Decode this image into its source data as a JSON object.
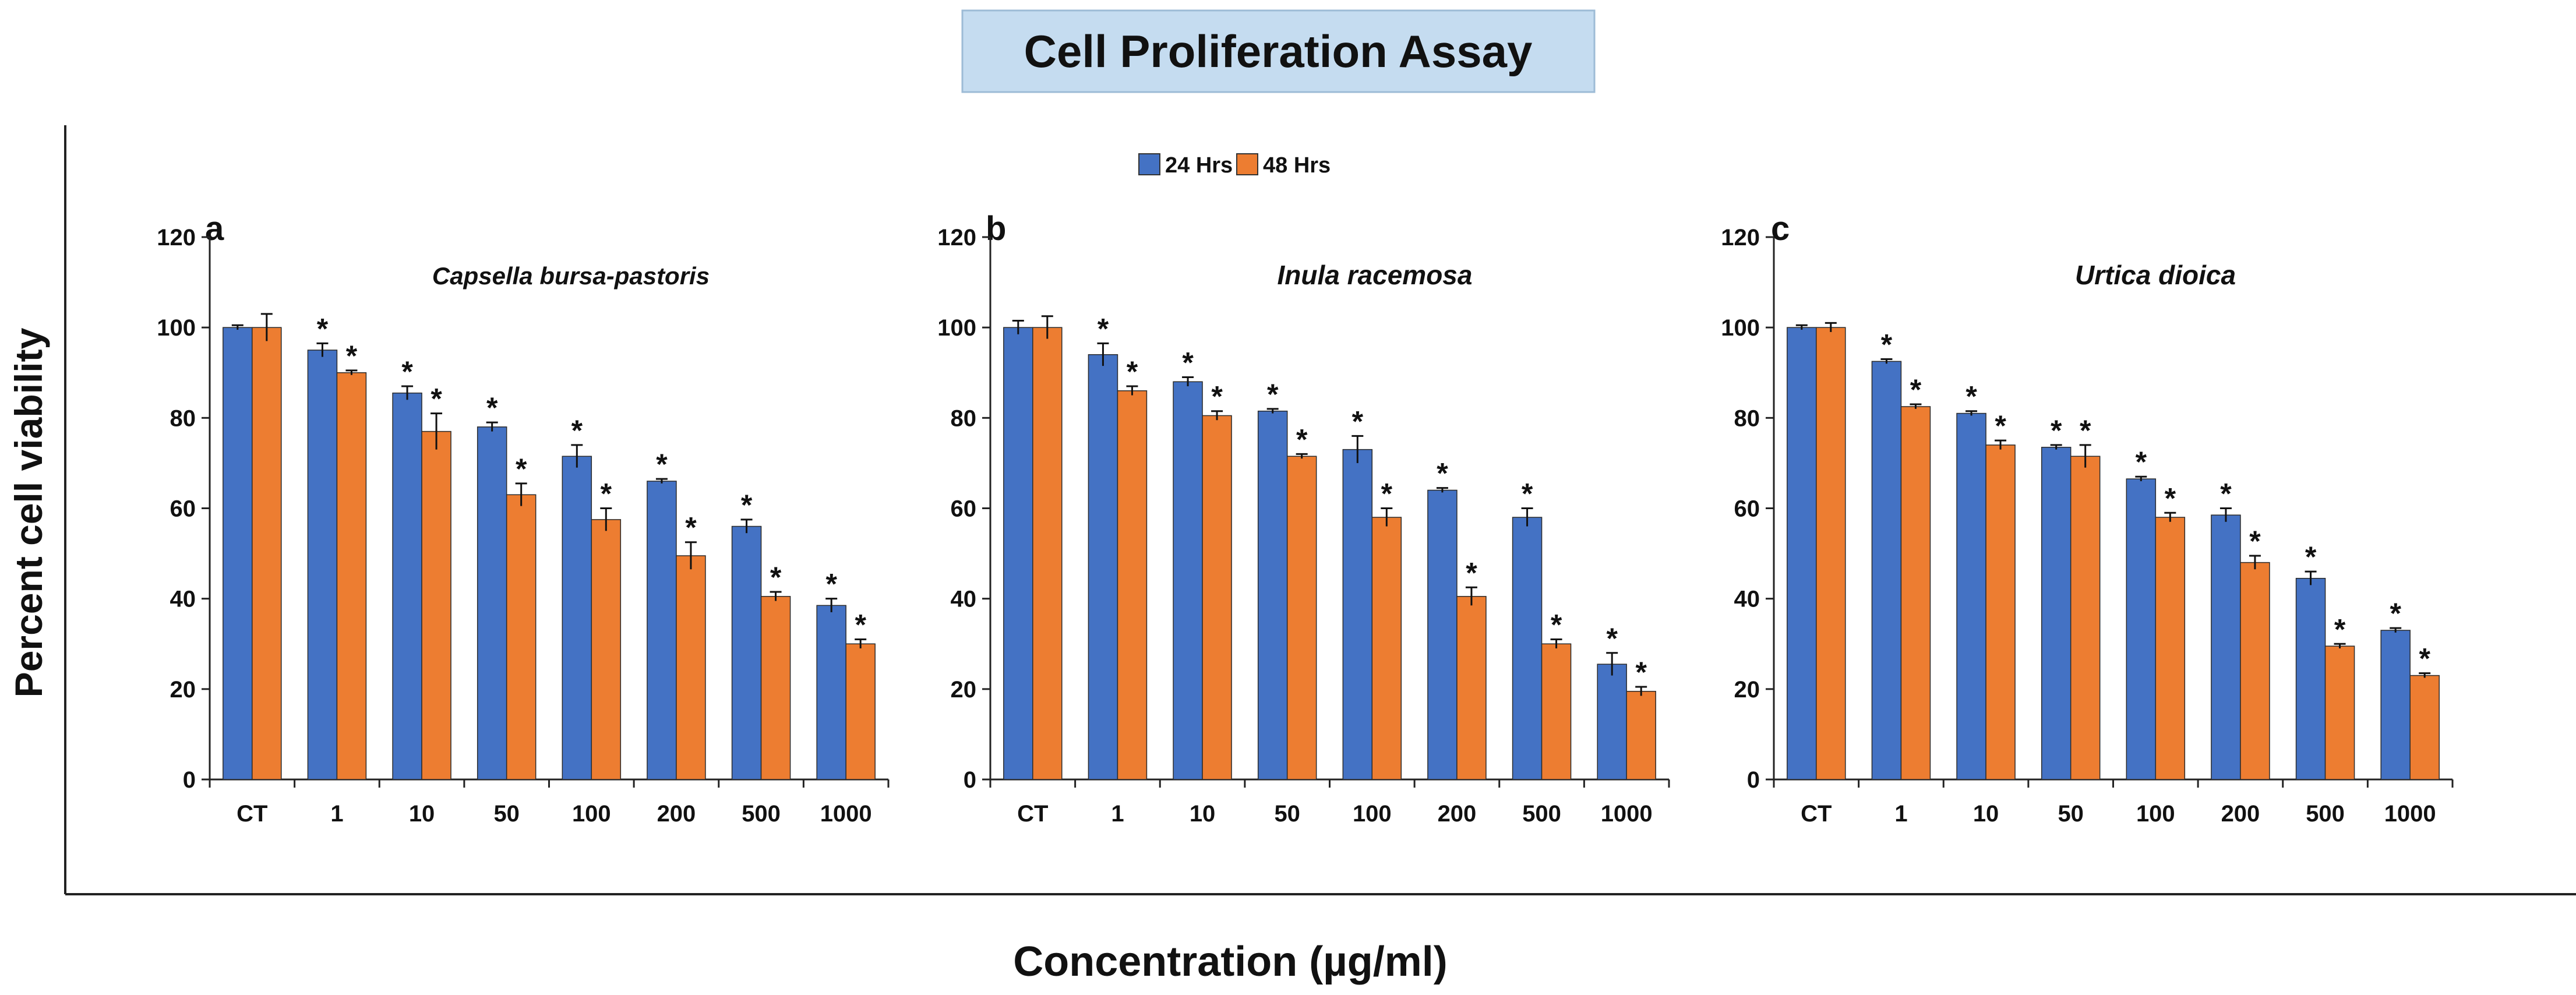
{
  "header": {
    "title": "Cell Proliferation Assay"
  },
  "axes": {
    "ylabel": "Percent cell viability",
    "xlabel": "Concentration (µg/ml)"
  },
  "legend": [
    {
      "name": "24 Hrs",
      "color": "#4472C4"
    },
    {
      "name": "48 Hrs",
      "color": "#ED7D31"
    }
  ],
  "colors": {
    "series24": "#4472C4",
    "series48": "#ED7D31",
    "title_bg": "#C5DCF0"
  },
  "significance_marker": "*",
  "chart_data": [
    {
      "type": "bar",
      "panel": "a",
      "title": "Capsella bursa-pastoris",
      "categories": [
        "CT",
        "1",
        "10",
        "50",
        "100",
        "200",
        "500",
        "1000"
      ],
      "yticks": [
        "0",
        "20",
        "40",
        "60",
        "80",
        "100",
        "120"
      ],
      "ylim": [
        0,
        120
      ],
      "series": [
        {
          "name": "24 Hrs",
          "values": [
            100,
            95,
            85.5,
            78,
            71.5,
            66,
            56,
            38.5
          ],
          "errors": [
            0.5,
            1.5,
            1.5,
            1,
            2.5,
            0.5,
            1.5,
            1.5
          ],
          "significant": [
            false,
            true,
            true,
            true,
            true,
            true,
            true,
            true
          ]
        },
        {
          "name": "48 Hrs",
          "values": [
            100,
            90,
            77,
            63,
            57.5,
            49.5,
            40.5,
            30
          ],
          "errors": [
            3,
            0.5,
            4,
            2.5,
            2.5,
            3,
            1,
            1
          ],
          "significant": [
            false,
            true,
            true,
            true,
            true,
            true,
            true,
            true
          ]
        }
      ]
    },
    {
      "type": "bar",
      "panel": "b",
      "title": "Inula racemosa",
      "categories": [
        "CT",
        "1",
        "10",
        "50",
        "100",
        "200",
        "500",
        "1000"
      ],
      "yticks": [
        "0",
        "20",
        "40",
        "60",
        "80",
        "100",
        "120"
      ],
      "ylim": [
        0,
        120
      ],
      "series": [
        {
          "name": "24 Hrs",
          "values": [
            100,
            94,
            88,
            81.5,
            73,
            64,
            58,
            25.5
          ],
          "errors": [
            1.5,
            2.5,
            1,
            0.5,
            3,
            0.5,
            2,
            2.5
          ],
          "significant": [
            false,
            true,
            true,
            true,
            true,
            true,
            true,
            true
          ]
        },
        {
          "name": "48 Hrs",
          "values": [
            100,
            86,
            80.5,
            71.5,
            58,
            40.5,
            30,
            19.5
          ],
          "errors": [
            2.5,
            1,
            1,
            0.5,
            2,
            2,
            1,
            1
          ],
          "significant": [
            false,
            true,
            true,
            true,
            true,
            true,
            true,
            true
          ]
        }
      ]
    },
    {
      "type": "bar",
      "panel": "c",
      "title": "Urtica dioica",
      "categories": [
        "CT",
        "1",
        "10",
        "50",
        "100",
        "200",
        "500",
        "1000"
      ],
      "yticks": [
        "0",
        "20",
        "40",
        "60",
        "80",
        "100",
        "120"
      ],
      "ylim": [
        0,
        120
      ],
      "series": [
        {
          "name": "24 Hrs",
          "values": [
            100,
            92.5,
            81,
            73.5,
            66.5,
            58.5,
            44.5,
            33
          ],
          "errors": [
            0.5,
            0.5,
            0.5,
            0.5,
            0.5,
            1.5,
            1.5,
            0.5
          ],
          "significant": [
            false,
            true,
            true,
            true,
            true,
            true,
            true,
            true
          ]
        },
        {
          "name": "48 Hrs",
          "values": [
            100,
            82.5,
            74,
            71.5,
            58,
            48,
            29.5,
            23
          ],
          "errors": [
            1,
            0.5,
            1,
            2.5,
            1,
            1.5,
            0.5,
            0.5
          ],
          "significant": [
            false,
            true,
            true,
            true,
            true,
            true,
            true,
            true
          ]
        }
      ]
    }
  ]
}
